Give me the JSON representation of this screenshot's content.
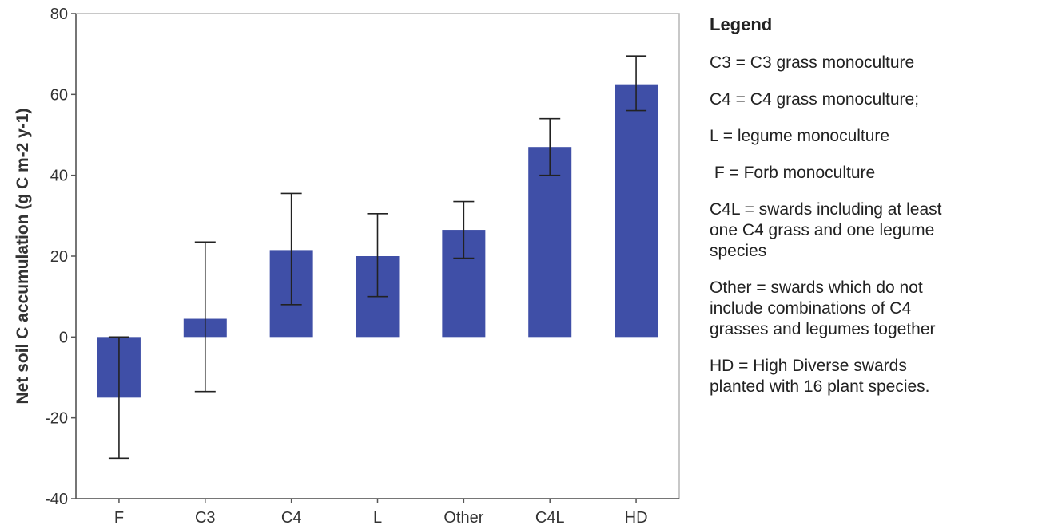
{
  "chart_data": {
    "type": "bar",
    "categories": [
      "F",
      "C3",
      "C4",
      "L",
      "Other",
      "C4L",
      "HD"
    ],
    "values": [
      -15,
      4.5,
      21.5,
      20,
      26.5,
      47,
      62.5
    ],
    "error_bars": [
      {
        "low": -30,
        "high": 0
      },
      {
        "low": -13.5,
        "high": 23.5
      },
      {
        "low": 8,
        "high": 35.5
      },
      {
        "low": 10,
        "high": 30.5
      },
      {
        "low": 19.5,
        "high": 33.5
      },
      {
        "low": 40,
        "high": 54
      },
      {
        "low": 56,
        "high": 69.5
      }
    ],
    "ylabel": "Net soil C accumulation (g C m-2 y-1)",
    "xlabel": "",
    "ylim": [
      -40,
      80
    ],
    "yticks": [
      -40,
      -20,
      0,
      20,
      40,
      60,
      80
    ],
    "ytick_labels": [
      "-40",
      "-20",
      "0",
      "20",
      "40",
      "60",
      "80"
    ],
    "bar_color": "#3f4fa7",
    "grid": false
  },
  "legend": {
    "title": "Legend",
    "items": [
      "C3 = C3 grass monoculture",
      "C4 = C4 grass monoculture;",
      "L = legume monoculture",
      " F = Forb monoculture",
      "C4L = swards including at least\none C4 grass and one legume\nspecies",
      "Other = swards which do not\ninclude combinations of C4\ngrasses and legumes together",
      "HD = High Diverse swards\nplanted with 16 plant species."
    ]
  }
}
